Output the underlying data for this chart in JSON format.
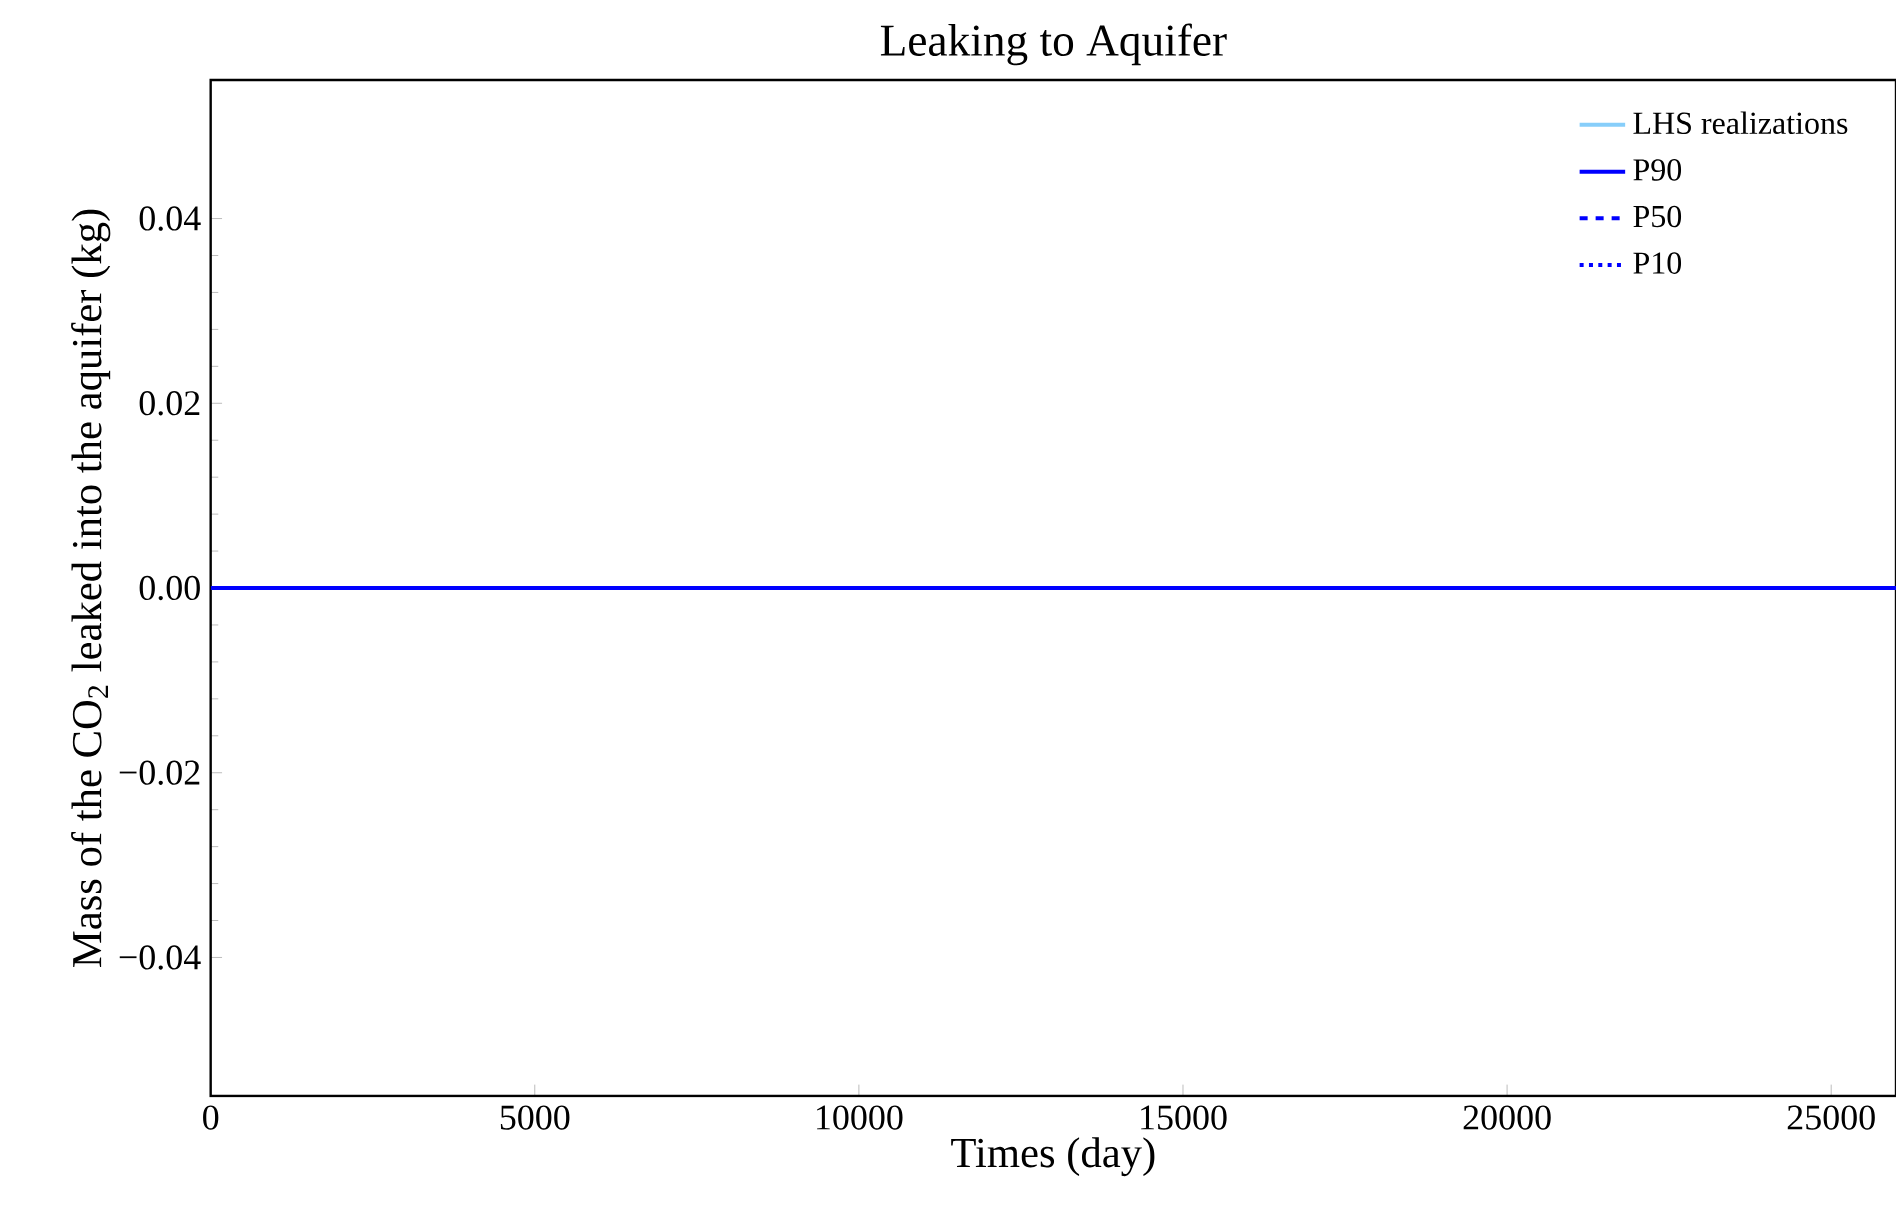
{
  "chart_data": {
    "type": "line",
    "title": "Leaking to Aquifer",
    "xlabel": "Times (day)",
    "ylabel": "Mass of the CO$_{2}$ leaked into the aquifer (kg)",
    "xlim": [
      0,
      26000
    ],
    "ylim": [
      -0.055,
      0.055
    ],
    "xticks": [
      0,
      5000,
      10000,
      15000,
      20000,
      25000
    ],
    "yticks": [
      {
        "value": -0.04,
        "label": "−0.04"
      },
      {
        "value": -0.02,
        "label": "−0.02"
      },
      {
        "value": 0,
        "label": "0.00"
      },
      {
        "value": 0.02,
        "label": "0.02"
      },
      {
        "value": 0.04,
        "label": "0.04"
      }
    ],
    "legend": "top right",
    "series": [
      {
        "name": "LHS realizations",
        "color": "#87cefa",
        "line_style": "solid",
        "values": [
          null,
          null
        ]
      },
      {
        "name": "P90",
        "color": "#0000ff",
        "line_style": "solid",
        "x": [
          0,
          26000
        ],
        "values": [
          0,
          0
        ]
      },
      {
        "name": "P50",
        "color": "#0000ff",
        "line_style": "dashed",
        "values": [
          null,
          null
        ]
      },
      {
        "name": "P10",
        "color": "#0000ff",
        "line_style": "dotted",
        "values": [
          null,
          null
        ]
      }
    ]
  }
}
